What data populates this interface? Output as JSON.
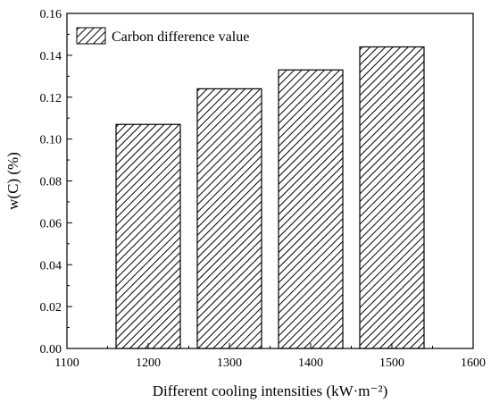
{
  "chart_data": {
    "type": "bar",
    "title": "",
    "xlabel": "Different cooling intensities (kW·m⁻²)",
    "ylabel": "w(C)  (%)",
    "categories": [
      1200,
      1300,
      1400,
      1500
    ],
    "series": [
      {
        "name": "Carbon difference value",
        "values": [
          0.107,
          0.124,
          0.133,
          0.144
        ]
      }
    ],
    "xlim": [
      1100,
      1600
    ],
    "ylim": [
      0,
      0.16
    ],
    "xticks": [
      "1100",
      "1200",
      "1300",
      "1400",
      "1500",
      "1600"
    ],
    "yticks": [
      "0.00",
      "0.02",
      "0.04",
      "0.06",
      "0.08",
      "0.10",
      "0.12",
      "0.14",
      "0.16"
    ],
    "bar_fill": "diagonal-hatch",
    "grid": false,
    "legend_position": "top-left"
  },
  "colors": {
    "stroke": "#000000",
    "background": "#ffffff"
  }
}
